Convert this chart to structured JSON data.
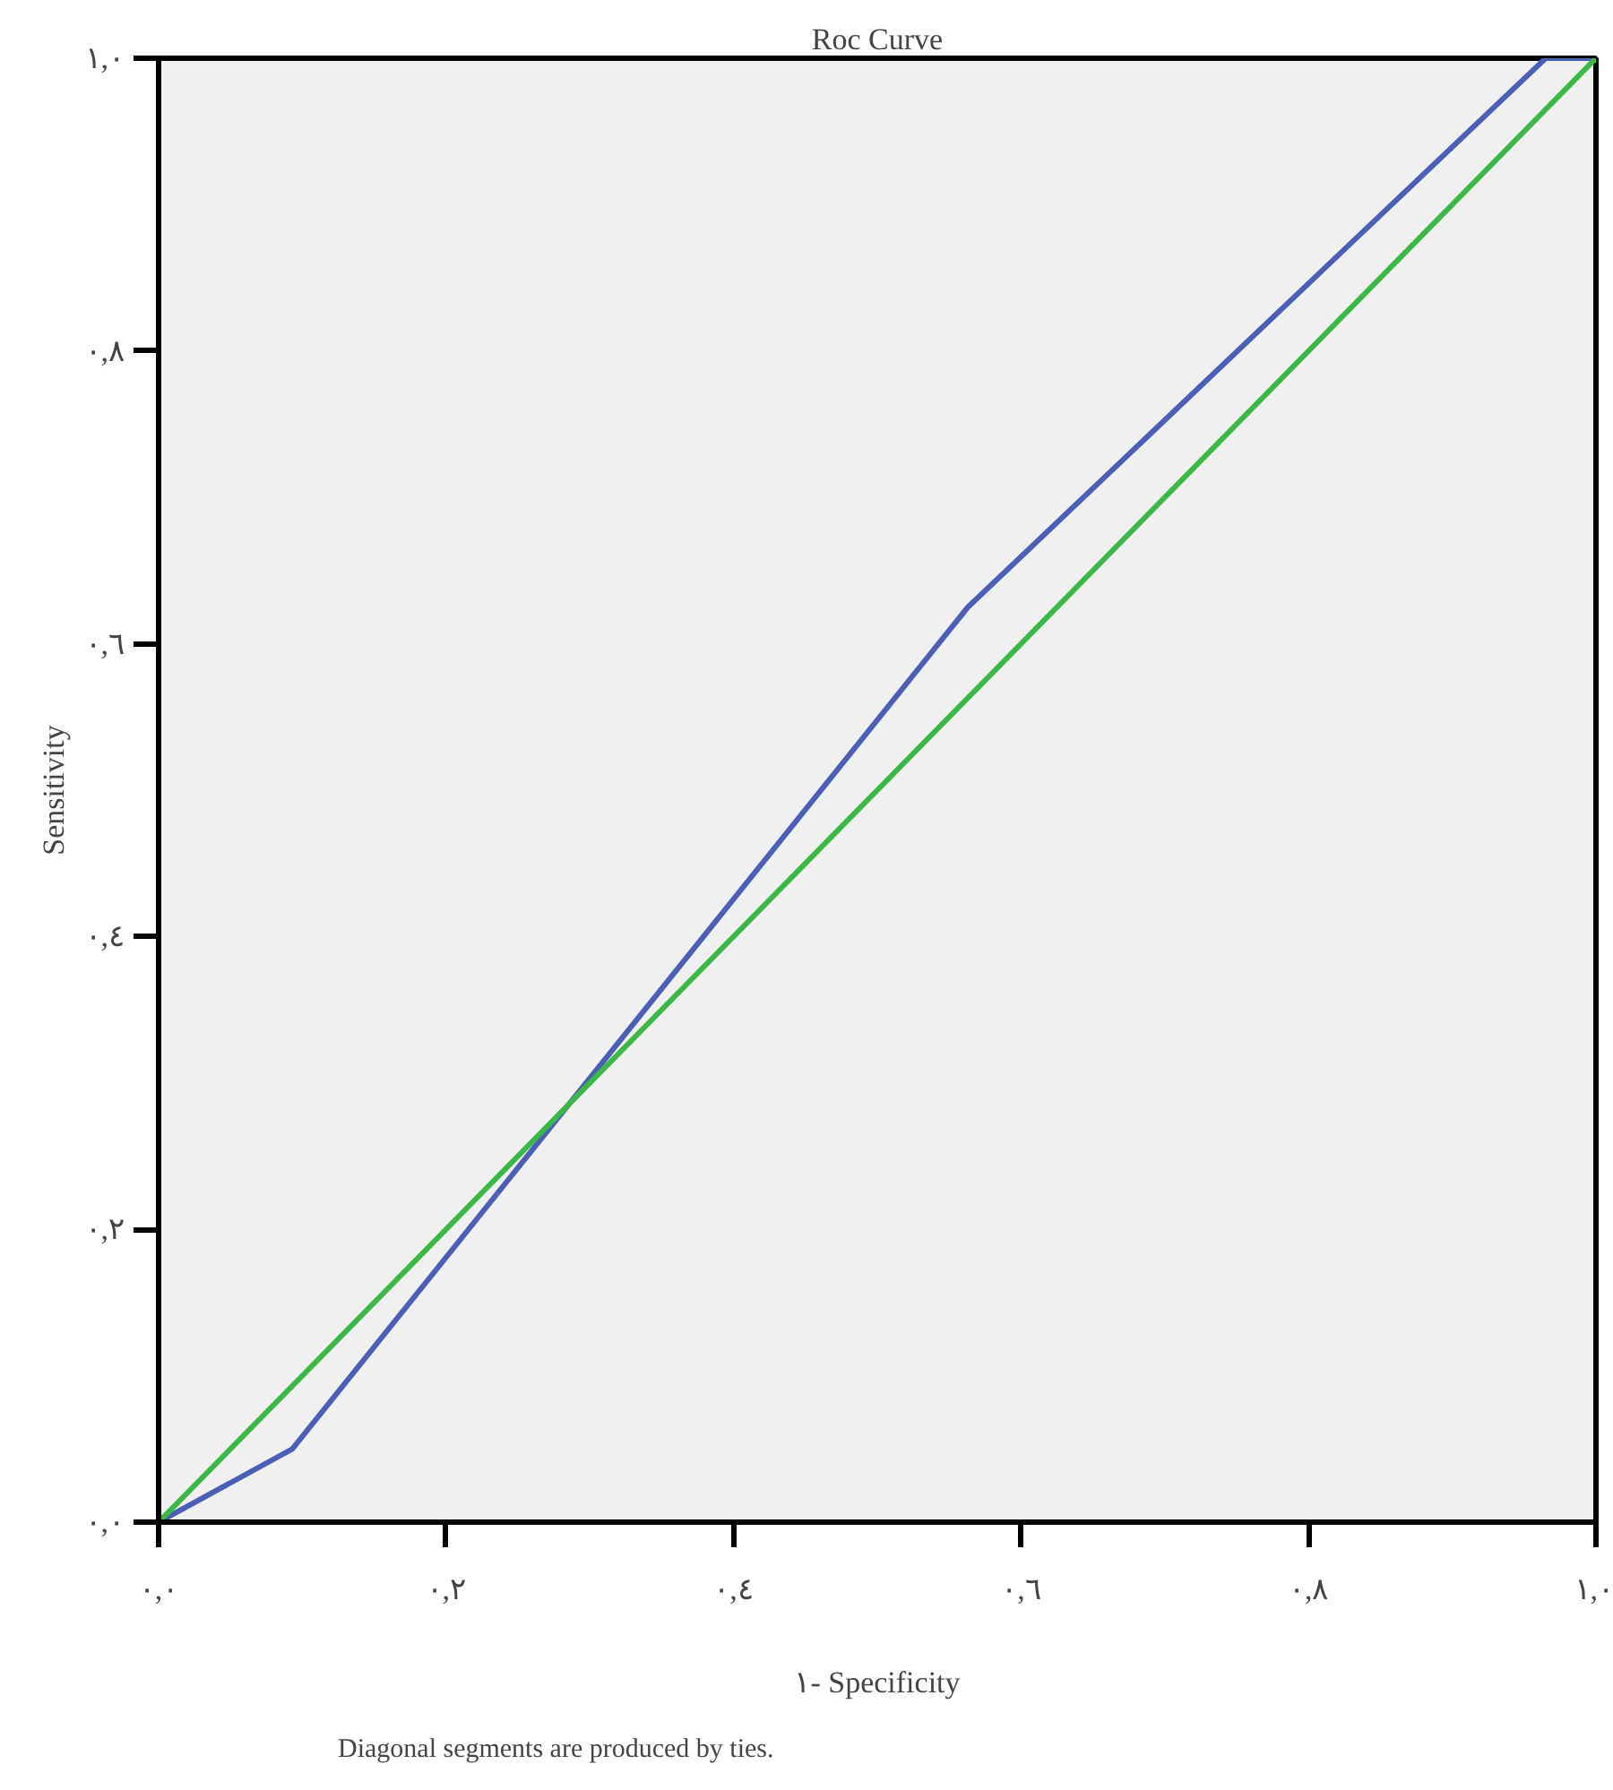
{
  "chart_data": {
    "type": "line",
    "title": "Roc Curve",
    "xlabel": "١- Specificity",
    "ylabel": "Sensitivity",
    "annotations": [
      "Diagonal segments are produced by ties."
    ],
    "xlim": [
      0,
      1
    ],
    "ylim": [
      0,
      1
    ],
    "xticks": [
      {
        "value": 0,
        "label": "٠,٠"
      },
      {
        "value": 0.2,
        "label": "٠,٢"
      },
      {
        "value": 0.4,
        "label": "٠,٤"
      },
      {
        "value": 0.6,
        "label": "٠,٦"
      },
      {
        "value": 0.8,
        "label": "٠,٨"
      },
      {
        "value": 1,
        "label": "١,٠"
      }
    ],
    "yticks": [
      {
        "value": 0,
        "label": "٠,٠"
      },
      {
        "value": 0.2,
        "label": "٠,٢"
      },
      {
        "value": 0.4,
        "label": "٠,٤"
      },
      {
        "value": 0.6,
        "label": "٠,٦"
      },
      {
        "value": 0.8,
        "label": "٠,٨"
      },
      {
        "value": 1,
        "label": "١,٠"
      }
    ],
    "grid": false,
    "series": [
      {
        "color": "#4a5fb5",
        "x": [
          0,
          0.093,
          0.563,
          0.965,
          1
        ],
        "values": [
          0,
          0.05,
          0.625,
          1,
          1
        ]
      },
      {
        "color": "#3cb846",
        "x": [
          0,
          1
        ],
        "values": [
          0,
          1
        ]
      }
    ]
  }
}
